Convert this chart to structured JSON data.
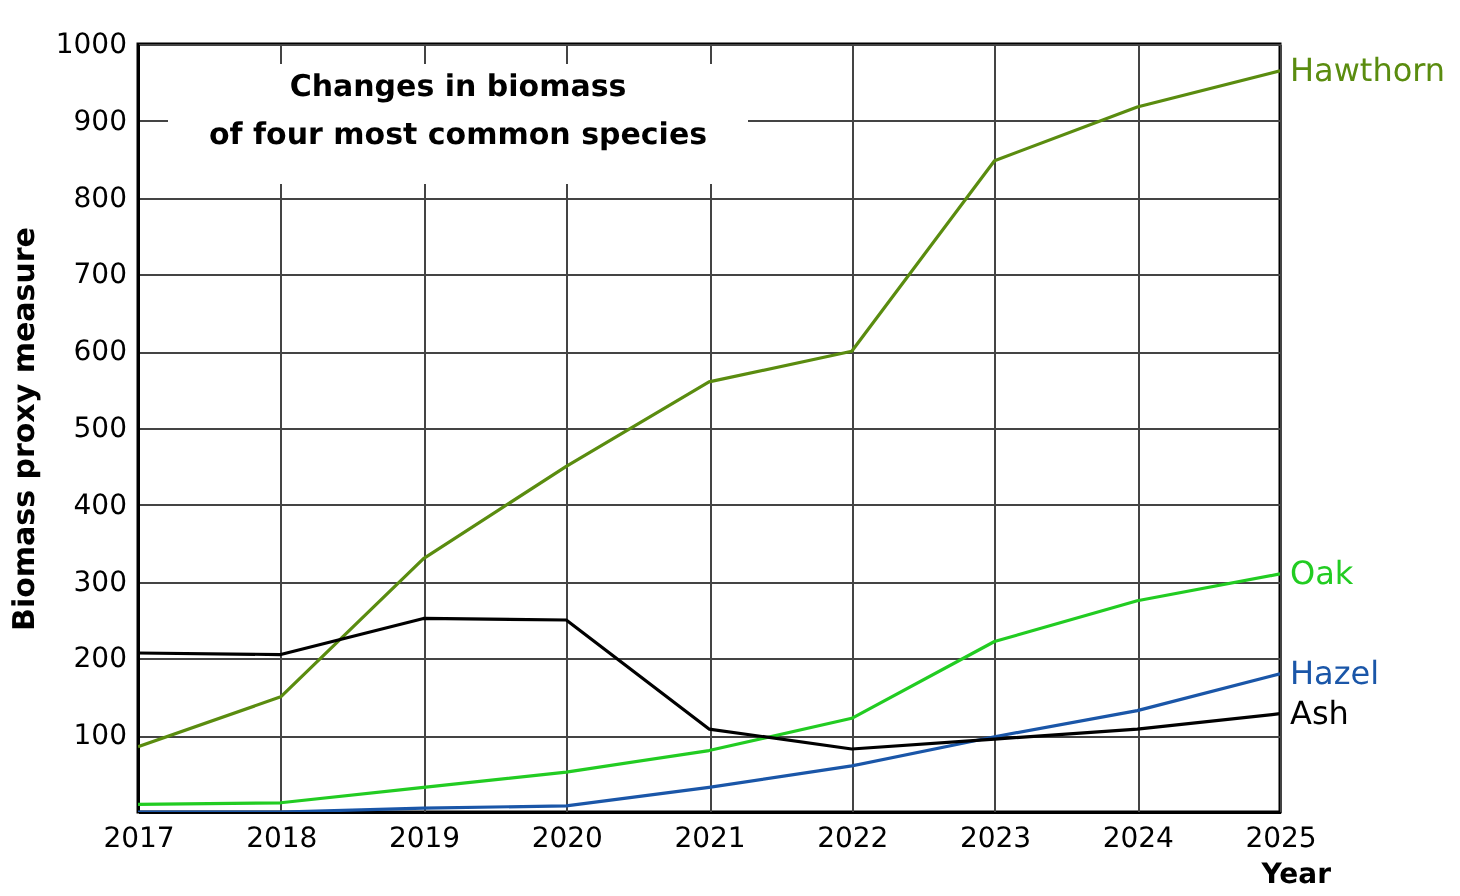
{
  "chart_data": {
    "type": "line",
    "title": "Changes in biomass\nof four most common species",
    "xlabel": "Year",
    "ylabel": "Biomass proxy measure",
    "x": [
      2017,
      2018,
      2019,
      2020,
      2021,
      2022,
      2023,
      2024,
      2025
    ],
    "series": [
      {
        "name": "Hawthorn",
        "color": "#5a8c0f",
        "values": [
          85,
          150,
          330,
          450,
          560,
          600,
          848,
          918,
          965
        ]
      },
      {
        "name": "Oak",
        "color": "#22cc22",
        "values": [
          10,
          12,
          32,
          52,
          80,
          122,
          222,
          275,
          310
        ]
      },
      {
        "name": "Hazel",
        "color": "#1a56a8",
        "values": [
          0,
          0,
          5,
          8,
          32,
          60,
          98,
          132,
          180
        ]
      },
      {
        "name": "Ash",
        "color": "#000000",
        "values": [
          207,
          205,
          252,
          250,
          108,
          82,
          95,
          108,
          128
        ]
      }
    ],
    "xlim": [
      2017,
      2025
    ],
    "xticks": [
      2017,
      2018,
      2019,
      2020,
      2021,
      2022,
      2023,
      2024,
      2025
    ],
    "ylim": [
      0,
      1000
    ],
    "yticks": [
      {
        "value": 0,
        "label": null
      },
      100,
      200,
      300,
      400,
      500,
      600,
      700,
      800,
      900,
      1000
    ],
    "grid": true,
    "legend": false,
    "marker": "none",
    "line_style": "solid"
  }
}
